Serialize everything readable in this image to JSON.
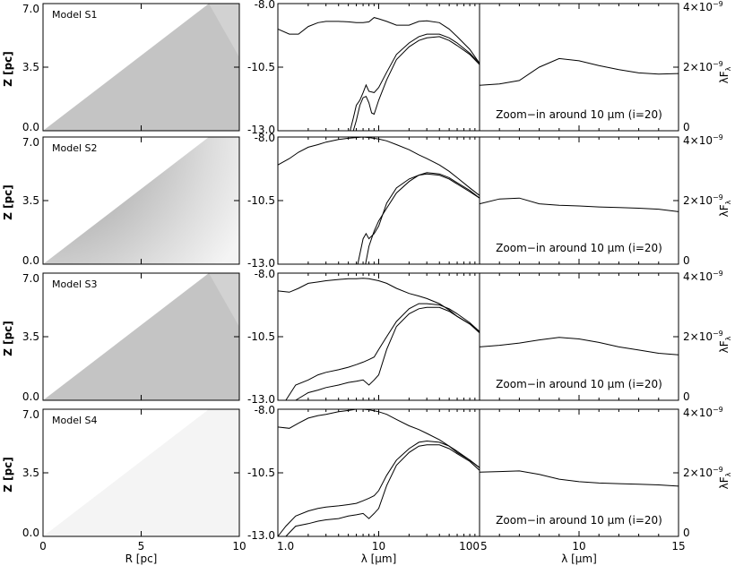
{
  "chart_data": {
    "type": "figure-grid",
    "rows": [
      {
        "model": "Model S1",
        "map_variant": "uniform",
        "sed_curves": [
          {
            "name": "",
            "x": [
              1.0,
              1.3,
              1.6,
              2,
              2.5,
              3,
              4,
              5,
              6,
              7,
              8,
              9,
              10,
              12,
              15,
              20,
              25,
              30,
              40,
              50,
              60,
              80,
              100
            ],
            "y": [
              -9.0,
              -9.2,
              -9.2,
              -8.9,
              -8.75,
              -8.7,
              -8.7,
              -8.72,
              -8.75,
              -8.75,
              -8.72,
              -8.55,
              -8.6,
              -8.7,
              -8.85,
              -8.85,
              -8.7,
              -8.68,
              -8.75,
              -9.0,
              -9.3,
              -9.8,
              -10.35
            ]
          },
          {
            "name": "",
            "x": [
              5.2,
              5.6,
              6,
              6.5,
              7,
              7.5,
              8,
              9,
              10,
              12,
              15,
              20,
              25,
              30,
              40,
              50,
              60,
              80,
              100
            ],
            "y": [
              -13.0,
              -12.5,
              -12.0,
              -11.8,
              -11.5,
              -11.2,
              -11.45,
              -11.5,
              -11.3,
              -10.7,
              -10.0,
              -9.55,
              -9.3,
              -9.2,
              -9.2,
              -9.35,
              -9.55,
              -9.95,
              -10.35
            ]
          },
          {
            "name": "",
            "x": [
              5.6,
              6,
              6.5,
              7,
              7.5,
              8,
              8.5,
              9,
              10,
              12,
              15,
              20,
              25,
              30,
              40,
              50,
              60,
              80,
              100
            ],
            "y": [
              -13.0,
              -12.6,
              -12.0,
              -11.7,
              -11.65,
              -11.9,
              -12.3,
              -12.35,
              -11.8,
              -11.0,
              -10.2,
              -9.7,
              -9.45,
              -9.35,
              -9.3,
              -9.45,
              -9.65,
              -10.0,
              -10.4
            ]
          }
        ],
        "zoom_x": [
          5,
          6,
          7,
          8,
          9,
          10,
          11,
          12,
          13,
          14,
          15
        ],
        "zoom_y": [
          1.43e-09,
          1.47e-09,
          1.58e-09,
          2e-09,
          2.27e-09,
          2.2e-09,
          2.05e-09,
          1.92e-09,
          1.82e-09,
          1.78e-09,
          1.8e-09
        ]
      },
      {
        "model": "Model S2",
        "map_variant": "gradient",
        "sed_curves": [
          {
            "name": "",
            "x": [
              1.0,
              1.3,
              1.6,
              2,
              2.5,
              3,
              4,
              5,
              6,
              7,
              8,
              10,
              12,
              15,
              20,
              25,
              30,
              40,
              50,
              60,
              80,
              100
            ],
            "y": [
              -9.1,
              -8.85,
              -8.6,
              -8.4,
              -8.3,
              -8.2,
              -8.1,
              -8.05,
              -8.02,
              -8.0,
              -8.02,
              -8.08,
              -8.15,
              -8.3,
              -8.5,
              -8.7,
              -8.85,
              -9.1,
              -9.35,
              -9.6,
              -10.0,
              -10.3
            ]
          },
          {
            "name": "",
            "x": [
              7.4,
              8,
              9,
              10,
              12,
              15,
              20,
              25,
              30,
              40,
              50,
              60,
              80,
              100
            ],
            "y": [
              -13.0,
              -12.3,
              -11.7,
              -11.3,
              -10.8,
              -10.2,
              -9.75,
              -9.5,
              -9.4,
              -9.45,
              -9.6,
              -9.8,
              -10.1,
              -10.4
            ]
          },
          {
            "name": "",
            "x": [
              6.2,
              7,
              7.5,
              8,
              9,
              10,
              12,
              15,
              20,
              25,
              30,
              40,
              50,
              60,
              80,
              100
            ],
            "y": [
              -13.0,
              -12.0,
              -11.8,
              -12.0,
              -11.8,
              -11.5,
              -10.6,
              -10.0,
              -9.65,
              -9.5,
              -9.45,
              -9.5,
              -9.65,
              -9.85,
              -10.15,
              -10.4
            ]
          }
        ],
        "zoom_x": [
          5,
          6,
          7,
          8,
          9,
          10,
          11,
          12,
          13,
          14,
          15
        ],
        "zoom_y": [
          1.9e-09,
          2.05e-09,
          2.08e-09,
          1.9e-09,
          1.85e-09,
          1.83e-09,
          1.8e-09,
          1.78e-09,
          1.76e-09,
          1.73e-09,
          1.65e-09
        ]
      },
      {
        "model": "Model S3",
        "map_variant": "uniform",
        "sed_curves": [
          {
            "name": "",
            "x": [
              1.0,
              1.3,
              1.6,
              2,
              2.5,
              3,
              4,
              5,
              6,
              7,
              8,
              10,
              12,
              15,
              20,
              25,
              30,
              40,
              50,
              60,
              80,
              100
            ],
            "y": [
              -8.7,
              -8.75,
              -8.6,
              -8.4,
              -8.35,
              -8.3,
              -8.25,
              -8.22,
              -8.22,
              -8.2,
              -8.22,
              -8.3,
              -8.4,
              -8.6,
              -8.8,
              -8.9,
              -9.0,
              -9.2,
              -9.45,
              -9.7,
              -10.0,
              -10.3
            ]
          },
          {
            "name": "",
            "x": [
              1.2,
              1.5,
              2,
              2.5,
              3,
              4,
              5,
              6,
              7,
              8,
              9,
              10,
              12,
              15,
              20,
              25,
              30,
              40,
              50,
              60,
              80,
              100
            ],
            "y": [
              -13.0,
              -12.4,
              -12.2,
              -12.0,
              -11.9,
              -11.8,
              -11.7,
              -11.6,
              -11.5,
              -11.4,
              -11.3,
              -11.0,
              -10.5,
              -9.9,
              -9.4,
              -9.2,
              -9.2,
              -9.25,
              -9.4,
              -9.6,
              -9.95,
              -10.3
            ]
          },
          {
            "name": "",
            "x": [
              1.5,
              2,
              2.5,
              3,
              4,
              5,
              6,
              7,
              8,
              9,
              10,
              12,
              15,
              20,
              25,
              30,
              40,
              50,
              60,
              80,
              100
            ],
            "y": [
              -13.0,
              -12.7,
              -12.6,
              -12.5,
              -12.4,
              -12.3,
              -12.25,
              -12.2,
              -12.4,
              -12.2,
              -12.0,
              -11.0,
              -10.1,
              -9.6,
              -9.4,
              -9.35,
              -9.35,
              -9.5,
              -9.7,
              -10.0,
              -10.35
            ]
          }
        ],
        "zoom_x": [
          5,
          6,
          7,
          8,
          9,
          10,
          11,
          12,
          13,
          14,
          15
        ],
        "zoom_y": [
          1.68e-09,
          1.73e-09,
          1.8e-09,
          1.9e-09,
          1.98e-09,
          1.93e-09,
          1.82e-09,
          1.68e-09,
          1.58e-09,
          1.48e-09,
          1.43e-09
        ]
      },
      {
        "model": "Model S4",
        "map_variant": "gradient",
        "sed_curves": [
          {
            "name": "",
            "x": [
              1.0,
              1.3,
              1.6,
              2,
              2.5,
              3,
              4,
              5,
              6,
              7,
              8,
              10,
              12,
              15,
              20,
              25,
              30,
              40,
              50,
              60,
              80,
              100
            ],
            "y": [
              -8.7,
              -8.75,
              -8.55,
              -8.35,
              -8.25,
              -8.2,
              -8.1,
              -8.05,
              -8.0,
              -8.0,
              -8.02,
              -8.1,
              -8.2,
              -8.4,
              -8.65,
              -8.8,
              -8.95,
              -9.2,
              -9.45,
              -9.7,
              -10.0,
              -10.3
            ]
          },
          {
            "name": "",
            "x": [
              1.0,
              1.2,
              1.5,
              2,
              2.5,
              3,
              4,
              5,
              6,
              7,
              8,
              9,
              10,
              12,
              15,
              20,
              25,
              30,
              40,
              50,
              60,
              80,
              100
            ],
            "y": [
              -13.0,
              -12.6,
              -12.2,
              -12.0,
              -11.9,
              -11.85,
              -11.8,
              -11.75,
              -11.7,
              -11.6,
              -11.5,
              -11.4,
              -11.2,
              -10.6,
              -10.0,
              -9.55,
              -9.3,
              -9.25,
              -9.3,
              -9.45,
              -9.65,
              -10.0,
              -10.3
            ]
          },
          {
            "name": "",
            "x": [
              1.2,
              1.5,
              2,
              2.5,
              3,
              4,
              5,
              6,
              7,
              8,
              9,
              10,
              12,
              15,
              20,
              25,
              30,
              40,
              50,
              60,
              80,
              100
            ],
            "y": [
              -13.0,
              -12.6,
              -12.5,
              -12.4,
              -12.35,
              -12.3,
              -12.2,
              -12.15,
              -12.1,
              -12.3,
              -12.1,
              -11.9,
              -11.0,
              -10.2,
              -9.7,
              -9.45,
              -9.4,
              -9.4,
              -9.55,
              -9.75,
              -10.05,
              -10.4
            ]
          }
        ],
        "zoom_x": [
          5,
          6,
          7,
          8,
          9,
          10,
          11,
          12,
          13,
          14,
          15
        ],
        "zoom_y": [
          2.02e-09,
          2.04e-09,
          2.06e-09,
          1.95e-09,
          1.8e-09,
          1.72e-09,
          1.68e-09,
          1.66e-09,
          1.64e-09,
          1.62e-09,
          1.58e-09
        ]
      }
    ],
    "map_axes": {
      "xlabel": "R [pc]",
      "ylabel": "Z [pc]",
      "xlim": [
        0,
        10
      ],
      "ylim": [
        0,
        7
      ],
      "xticks": [
        "0",
        "5",
        "10"
      ],
      "yticks": [
        "0.0",
        "3.5",
        "7.0"
      ]
    },
    "sed_axes": {
      "xlabel": "λ [μm]",
      "scale": "log",
      "xlim": [
        1,
        100
      ],
      "ylim": [
        -13.0,
        -8.0
      ],
      "xticks": [
        "1.0",
        "10",
        "100"
      ],
      "yticks": [
        "-8.0",
        "-10.5",
        "-13.0"
      ]
    },
    "zoom_axes": {
      "xlabel": "λ [μm]",
      "xlim": [
        5,
        15
      ],
      "ylim": [
        0,
        4e-09
      ],
      "xticks": [
        "5",
        "10",
        "15"
      ],
      "ytick_values": [
        "0",
        "2×10",
        "4×10"
      ],
      "ytick_exponent": "−9",
      "ylabel_main": "λF",
      "ylabel_sub": "λ",
      "annotation": "Zoom−in around 10 μm (i=20)"
    }
  }
}
